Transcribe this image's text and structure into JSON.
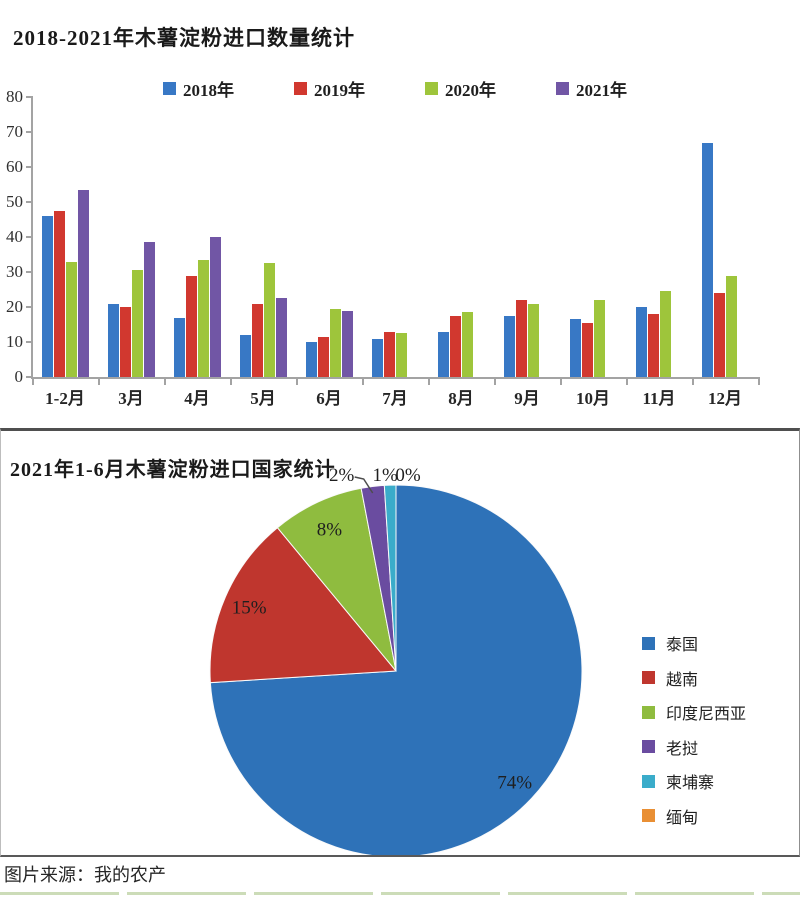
{
  "page": {
    "source_note": "图片来源：我的农产"
  },
  "chart_data": [
    {
      "type": "bar",
      "title": "2018-2021年木薯淀粉进口数量统计",
      "categories": [
        "1-2月",
        "3月",
        "4月",
        "5月",
        "6月",
        "7月",
        "8月",
        "9月",
        "10月",
        "11月",
        "12月"
      ],
      "series": [
        {
          "name": "2018年",
          "color": "#3878c5",
          "values": [
            46,
            21,
            17,
            12,
            10,
            11,
            13,
            17.5,
            16.5,
            20,
            67
          ]
        },
        {
          "name": "2019年",
          "color": "#d1382f",
          "values": [
            47.5,
            20,
            29,
            21,
            11.5,
            13,
            17.5,
            22,
            15.5,
            18,
            24
          ]
        },
        {
          "name": "2020年",
          "color": "#9ec53b",
          "values": [
            33,
            30.5,
            33.5,
            32.5,
            19.5,
            12.5,
            18.5,
            21,
            22,
            24.5,
            29
          ]
        },
        {
          "name": "2021年",
          "color": "#7156a5",
          "values": [
            53.5,
            38.5,
            40,
            22.5,
            19,
            null,
            null,
            null,
            null,
            null,
            null
          ]
        }
      ],
      "ylim": [
        0,
        80
      ],
      "ytick_step": 10,
      "grid": false,
      "legend_position": "top"
    },
    {
      "type": "pie",
      "title": "2021年1-6月木薯淀粉进口国家统计",
      "labels": [
        "泰国",
        "越南",
        "印度尼西亚",
        "老挝",
        "柬埔寨",
        "缅甸"
      ],
      "values": [
        74,
        15,
        8,
        2,
        1,
        0
      ],
      "percent_labels": [
        "74%",
        "15%",
        "8%",
        "2%",
        "1%",
        "0%"
      ],
      "colors": [
        "#2e72b8",
        "#bf362e",
        "#8fbc3f",
        "#6a4ca0",
        "#3aacca",
        "#e98f34"
      ],
      "start_angle_deg": -90,
      "direction": "clockwise",
      "legend_position": "right"
    }
  ]
}
